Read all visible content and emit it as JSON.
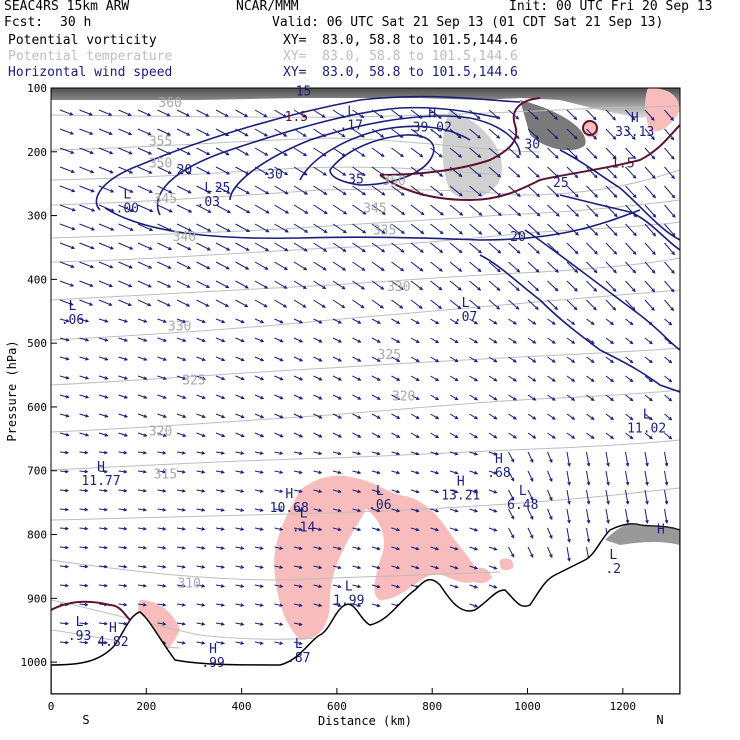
{
  "header": {
    "model": "SEAC4RS 15km ARW",
    "org": "NCAR/MMM",
    "init": "Init: 00 UTC Fri 20 Sep 13",
    "fcst_label": "Fcst:",
    "fcst_value": "30 h",
    "valid": "Valid: 06 UTC Sat 21 Sep 13 (01 CDT Sat 21 Sep 13)",
    "fields": [
      {
        "name": "Potential vorticity",
        "xy": "XY=  83.0, 58.8 to 101.5,144.6",
        "color": "#000000"
      },
      {
        "name": "Potential temperature",
        "xy": "XY=  83.0, 58.8 to 101.5,144.6",
        "color": "#bdbdbd"
      },
      {
        "name": "Horizontal wind speed",
        "xy": "XY=  83.0, 58.8 to 101.5,144.6",
        "color": "#1a1f7a"
      }
    ]
  },
  "chart_data": {
    "type": "cross-section",
    "xlabel": "Distance (km)",
    "ylabel": "Pressure (hPa)",
    "xlim": [
      0,
      1320
    ],
    "ylim": [
      1050,
      100
    ],
    "x_ticks": [
      "0",
      "200",
      "400",
      "600",
      "800",
      "1000",
      "1200"
    ],
    "y_ticks": [
      "100",
      "200",
      "300",
      "400",
      "500",
      "600",
      "700",
      "800",
      "900",
      "1000"
    ],
    "x_end_labels": {
      "left": "S",
      "right": "N"
    },
    "wind_speed_contours": [
      {
        "value": "15",
        "x": 530,
        "p": 112
      },
      {
        "value": "20",
        "x": 280,
        "p": 235
      },
      {
        "value": "25",
        "x": 360,
        "p": 263
      },
      {
        "value": "30",
        "x": 470,
        "p": 242
      },
      {
        "value": "35",
        "x": 640,
        "p": 250
      },
      {
        "value": "30",
        "x": 1010,
        "p": 195
      },
      {
        "value": "25",
        "x": 1070,
        "p": 255
      },
      {
        "value": "20",
        "x": 980,
        "p": 340
      }
    ],
    "theta_contours": [
      {
        "value": "360",
        "x": 250,
        "p": 130
      },
      {
        "value": "355",
        "x": 230,
        "p": 190
      },
      {
        "value": "350",
        "x": 230,
        "p": 225
      },
      {
        "value": "345",
        "x": 240,
        "p": 280
      },
      {
        "value": "340",
        "x": 280,
        "p": 340
      },
      {
        "value": "350",
        "x": 720,
        "p": 252
      },
      {
        "value": "345",
        "x": 680,
        "p": 295
      },
      {
        "value": "335",
        "x": 700,
        "p": 330
      },
      {
        "value": "330",
        "x": 730,
        "p": 418
      },
      {
        "value": "330",
        "x": 270,
        "p": 480
      },
      {
        "value": "325",
        "x": 710,
        "p": 525
      },
      {
        "value": "325",
        "x": 300,
        "p": 565
      },
      {
        "value": "320",
        "x": 740,
        "p": 590
      },
      {
        "value": "320",
        "x": 230,
        "p": 645
      },
      {
        "value": "315",
        "x": 240,
        "p": 712
      },
      {
        "value": "310",
        "x": 290,
        "p": 883
      }
    ],
    "pv_contours": [
      {
        "value": "1.5",
        "x": 515,
        "p": 152
      },
      {
        "value": "1.5",
        "x": 1200,
        "p": 225
      }
    ],
    "extrema": [
      {
        "type": "L",
        "value": ".00",
        "x": 160,
        "p": 295
      },
      {
        "type": "L",
        "value": ".03",
        "x": 330,
        "p": 285
      },
      {
        "type": "L",
        "value": ".17",
        "x": 630,
        "p": 165
      },
      {
        "type": "H",
        "value": "39.02",
        "x": 800,
        "p": 168
      },
      {
        "type": "H",
        "value": "33.13",
        "x": 1225,
        "p": 175
      },
      {
        "type": "L",
        "value": ".06",
        "x": 45,
        "p": 470
      },
      {
        "type": "L",
        "value": ".07",
        "x": 870,
        "p": 465
      },
      {
        "type": "L",
        "value": "11.02",
        "x": 1250,
        "p": 640
      },
      {
        "type": "H",
        "value": "11.77",
        "x": 105,
        "p": 722
      },
      {
        "type": "H",
        "value": "10.68",
        "x": 500,
        "p": 765
      },
      {
        "type": "L",
        "value": ".14",
        "x": 530,
        "p": 795
      },
      {
        "type": "L",
        "value": ".06",
        "x": 690,
        "p": 760
      },
      {
        "type": "H",
        "value": "13.21",
        "x": 860,
        "p": 745
      },
      {
        "type": "H",
        "value": ".68",
        "x": 940,
        "p": 710
      },
      {
        "type": "L",
        "value": "6.48",
        "x": 990,
        "p": 760
      },
      {
        "type": "L",
        "value": "1.99",
        "x": 625,
        "p": 910
      },
      {
        "type": "L",
        "value": ".93",
        "x": 60,
        "p": 965
      },
      {
        "type": "H",
        "value": "4.82",
        "x": 130,
        "p": 975
      },
      {
        "type": "H",
        "value": ".99",
        "x": 340,
        "p": 1008
      },
      {
        "type": "L",
        "value": ".87",
        "x": 520,
        "p": 1000
      },
      {
        "type": "H",
        "value": "",
        "x": 1280,
        "p": 820
      },
      {
        "type": "L",
        "value": ".2",
        "x": 1180,
        "p": 860
      }
    ],
    "jet_core_kt": 39.02,
    "grid": false,
    "colors": {
      "wind": "#1a1f7a",
      "theta": "#b0b0b0",
      "pv": "#5a1530",
      "pv_fill": "#f9bcbc",
      "terrain": "#000000"
    }
  }
}
